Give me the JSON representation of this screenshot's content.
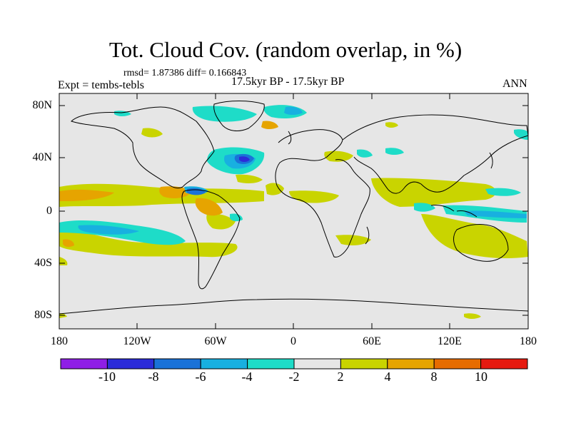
{
  "title": "Tot. Cloud Cov. (random overlap, in %)",
  "stats": "rmsd= 1.87386 diff= 0.166843",
  "experiment": "Expt = tembs-tebls",
  "period": "17.5kyr BP - 17.5kyr BP",
  "season": "ANN",
  "y_axis_labels": [
    "80N",
    "40N",
    "0",
    "40S",
    "80S"
  ],
  "x_axis_labels": [
    "180",
    "120W",
    "60W",
    "0",
    "60E",
    "120E",
    "180"
  ],
  "colorbar": {
    "colors": [
      "#8f1ee6",
      "#2c2cd9",
      "#1a72d8",
      "#18b0e0",
      "#1edcc8",
      "#e6e6e6",
      "#c9d400",
      "#e6a400",
      "#e66c00",
      "#e61a10"
    ],
    "labels": [
      "-10",
      "-8",
      "-6",
      "-4",
      "-2",
      "2",
      "4",
      "8",
      "10"
    ]
  },
  "colors": {
    "background": "#e6e6e6",
    "coastline": "#000000"
  }
}
